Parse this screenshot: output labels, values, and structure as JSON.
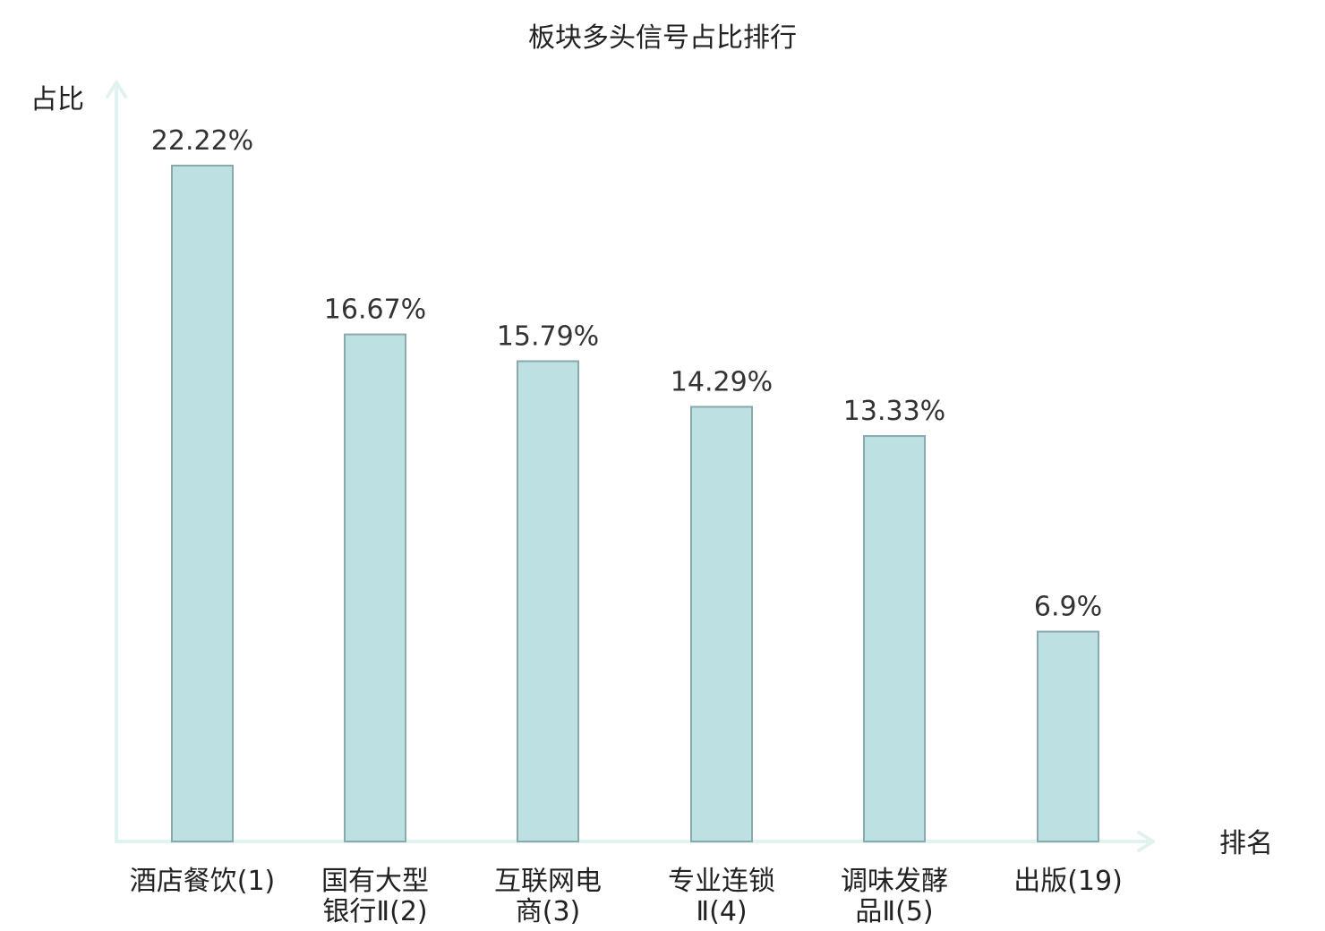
{
  "chart_data": {
    "type": "bar",
    "title": "板块多头信号占比排行",
    "xlabel": "排名",
    "ylabel": "占比",
    "categories": [
      [
        "酒店餐饮(1)"
      ],
      [
        "国有大型",
        "银行Ⅱ(2)"
      ],
      [
        "互联网电",
        "商(3)"
      ],
      [
        "专业连锁",
        "Ⅱ(4)"
      ],
      [
        "调味发酵",
        "品Ⅱ(5)"
      ],
      [
        "出版(19)"
      ]
    ],
    "values": [
      22.22,
      16.67,
      15.79,
      14.29,
      13.33,
      6.9
    ],
    "value_labels": [
      "22.22%",
      "16.67%",
      "15.79%",
      "14.29%",
      "13.33%",
      "6.9%"
    ],
    "highlight_index": 5,
    "ylim": [
      0,
      22.22
    ],
    "grid": false,
    "colors": {
      "bar_fill": "#bde0e3",
      "bar_stroke": "#8aa9ad",
      "axis": "#e1f3f0",
      "text": "#222222",
      "value_text": "#333333",
      "highlight_text": "#e60012"
    }
  }
}
